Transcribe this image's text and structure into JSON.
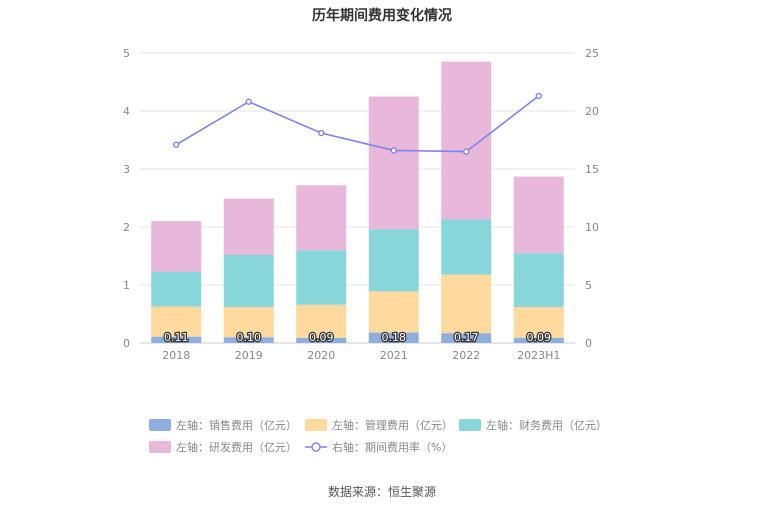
{
  "chart_data": {
    "type": "bar",
    "title": "历年期间费用变化情况",
    "categories": [
      "2018",
      "2019",
      "2020",
      "2021",
      "2022",
      "2023H1"
    ],
    "left_axis": {
      "min": 0,
      "max": 5,
      "ticks": [
        0,
        1,
        2,
        3,
        4,
        5
      ]
    },
    "right_axis": {
      "min": 0,
      "max": 25,
      "ticks": [
        0,
        5,
        10,
        15,
        20,
        25
      ]
    },
    "grid": true,
    "stacked": true,
    "series": [
      {
        "name": "左轴：销售费用（亿元）",
        "type": "bar",
        "axis": "left",
        "color": "#8eaede",
        "values": [
          0.11,
          0.1,
          0.09,
          0.18,
          0.17,
          0.09
        ],
        "data_labels": [
          "0.11",
          "0.10",
          "0.09",
          "0.18",
          "0.17",
          "0.09"
        ]
      },
      {
        "name": "左轴：管理费用（亿元）",
        "type": "bar",
        "axis": "left",
        "color": "#ffd99e",
        "values": [
          0.52,
          0.52,
          0.57,
          0.71,
          1.01,
          0.53
        ]
      },
      {
        "name": "左轴：财务费用（亿元）",
        "type": "bar",
        "axis": "left",
        "color": "#88d6d9",
        "values": [
          0.6,
          0.9,
          0.94,
          1.07,
          0.95,
          0.93
        ]
      },
      {
        "name": "左轴：研发费用（亿元）",
        "type": "bar",
        "axis": "left",
        "color": "#e8b8da",
        "values": [
          0.87,
          0.97,
          1.12,
          2.29,
          2.72,
          1.32
        ]
      },
      {
        "name": "右轴：期间费用率（%）",
        "type": "line",
        "axis": "right",
        "color": "#7f83f0",
        "values": [
          17.1,
          20.8,
          18.1,
          16.6,
          16.5,
          21.3
        ]
      }
    ],
    "legend_position": "bottom",
    "source": "数据来源：恒生聚源"
  }
}
